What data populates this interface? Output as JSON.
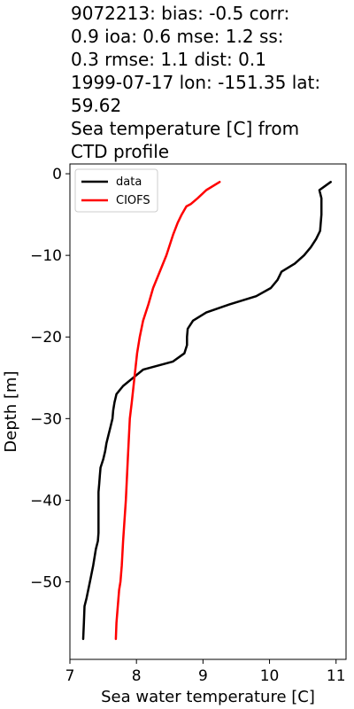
{
  "chart_data": {
    "type": "line",
    "title_lines": [
      "9072213: bias: -0.5  corr:",
      "0.9  ioa: 0.6  mse: 1.2  ss:",
      "0.3  rmse: 1.1  dist: 0.1",
      "1999-07-17 lon: -151.35 lat:",
      "59.62",
      "Sea temperature [C] from",
      "CTD profile"
    ],
    "xlabel": "Sea water temperature [C]",
    "ylabel": "Depth [m]",
    "xlim": [
      7.0,
      11.15
    ],
    "ylim": [
      -59.5,
      1.2
    ],
    "xticks": [
      7,
      8,
      9,
      10,
      11
    ],
    "xtick_labels": [
      "7",
      "8",
      "9",
      "10",
      "11"
    ],
    "yticks": [
      0,
      -10,
      -20,
      -30,
      -40,
      -50
    ],
    "ytick_labels": [
      "0",
      "−10",
      "−20",
      "−30",
      "−40",
      "−50"
    ],
    "grid": false,
    "legend_position": "top-left",
    "series": [
      {
        "name": "data",
        "color": "#000000",
        "points": [
          [
            10.92,
            -1
          ],
          [
            10.75,
            -2
          ],
          [
            10.78,
            -3
          ],
          [
            10.78,
            -5
          ],
          [
            10.76,
            -7
          ],
          [
            10.7,
            -8
          ],
          [
            10.62,
            -9
          ],
          [
            10.52,
            -10
          ],
          [
            10.38,
            -11
          ],
          [
            10.18,
            -12
          ],
          [
            10.12,
            -13
          ],
          [
            10.02,
            -14
          ],
          [
            9.8,
            -15
          ],
          [
            9.4,
            -16
          ],
          [
            9.05,
            -17
          ],
          [
            8.85,
            -18
          ],
          [
            8.77,
            -19
          ],
          [
            8.76,
            -20
          ],
          [
            8.76,
            -21
          ],
          [
            8.72,
            -22
          ],
          [
            8.55,
            -23
          ],
          [
            8.1,
            -24
          ],
          [
            7.95,
            -25
          ],
          [
            7.8,
            -26
          ],
          [
            7.7,
            -27
          ],
          [
            7.67,
            -28
          ],
          [
            7.65,
            -29
          ],
          [
            7.64,
            -30
          ],
          [
            7.61,
            -31
          ],
          [
            7.58,
            -32
          ],
          [
            7.55,
            -33
          ],
          [
            7.53,
            -34
          ],
          [
            7.5,
            -35
          ],
          [
            7.46,
            -36
          ],
          [
            7.45,
            -37
          ],
          [
            7.44,
            -38
          ],
          [
            7.43,
            -39
          ],
          [
            7.43,
            -40
          ],
          [
            7.43,
            -42
          ],
          [
            7.43,
            -44
          ],
          [
            7.42,
            -45
          ],
          [
            7.39,
            -46
          ],
          [
            7.35,
            -48
          ],
          [
            7.3,
            -50
          ],
          [
            7.25,
            -52
          ],
          [
            7.22,
            -53
          ],
          [
            7.21,
            -55
          ],
          [
            7.2,
            -57
          ]
        ]
      },
      {
        "name": "CIOFS",
        "color": "#ff0000",
        "points": [
          [
            9.25,
            -1
          ],
          [
            9.05,
            -2
          ],
          [
            8.92,
            -3
          ],
          [
            8.82,
            -3.7
          ],
          [
            8.75,
            -4
          ],
          [
            8.68,
            -5
          ],
          [
            8.62,
            -6
          ],
          [
            8.55,
            -7.5
          ],
          [
            8.45,
            -10
          ],
          [
            8.35,
            -12
          ],
          [
            8.25,
            -14
          ],
          [
            8.18,
            -16
          ],
          [
            8.1,
            -18
          ],
          [
            8.05,
            -20
          ],
          [
            8.01,
            -22
          ],
          [
            7.97,
            -25
          ],
          [
            7.93,
            -28
          ],
          [
            7.9,
            -30
          ],
          [
            7.87,
            -35
          ],
          [
            7.84,
            -40
          ],
          [
            7.8,
            -45
          ],
          [
            7.78,
            -48
          ],
          [
            7.76,
            -50
          ],
          [
            7.74,
            -51
          ],
          [
            7.72,
            -53
          ],
          [
            7.7,
            -55
          ],
          [
            7.69,
            -57
          ]
        ]
      }
    ]
  }
}
